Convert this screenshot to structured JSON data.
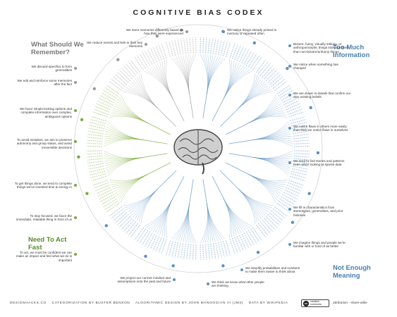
{
  "title": "COGNITIVE BIAS CODEX",
  "regions": {
    "remember": "What Should We Remember?",
    "info": "Too Much Information",
    "act": "Need To Act Fast",
    "meaning": "Not Enough Meaning"
  },
  "notes_top": [
    "We store memories differently based on how they were experienced",
    "We reduce events and lists to their key elements",
    "We notice things already primed in memory or repeated often"
  ],
  "notes_left": [
    "We discard specifics to form generalities",
    "We edit and reinforce some memories after the fact",
    "We favor simple-looking options and complete information over complex, ambiguous options",
    "To avoid mistakes, we aim to preserve autonomy and group status, and avoid irreversible decisions",
    "To get things done, we tend to complete things we've invested time & energy in",
    "To stay focused, we favor the immediate, relatable thing in front of us",
    "To act, we must be confident we can make an impact and feel what we do is important"
  ],
  "notes_right": [
    "Bizarre, funny, visually-striking, or anthropomorphic things stick out more than non-bizarre/unfunny things",
    "We notice when something has changed",
    "We are drawn to details that confirm our own existing beliefs",
    "We notice flaws in others more easily than than we notice flaws in ourselves",
    "We tend to find stories and patterns even when looking at sparse data",
    "We fill in characteristics from stereotypes, generalities, and prior histories",
    "We imagine things and people we're familiar with or fond of as better"
  ],
  "notes_bottom": [
    "We project our current mindset and assumptions onto the past and future",
    "We think we know what other people are thinking",
    "We simplify probabilities and numbers to make them easier to think about"
  ],
  "footer": {
    "site": "DESIGNHACKS.CO",
    "categorization": "CATEGORIZATION BY BUSTER BENSON",
    "algorithm": "ALGORITHMIC DESIGN BY JOHN MANOOGIAN III (JM3)",
    "data": "DATA BY WIKIPEDIA",
    "cc_line1": "creative",
    "cc_line2": "commons",
    "license": "attribution - share-alike"
  },
  "colors": {
    "memory": "#9a9a9a",
    "information": "#5b90c2",
    "meaning": "#5b90c2",
    "action": "#7aab3a"
  }
}
